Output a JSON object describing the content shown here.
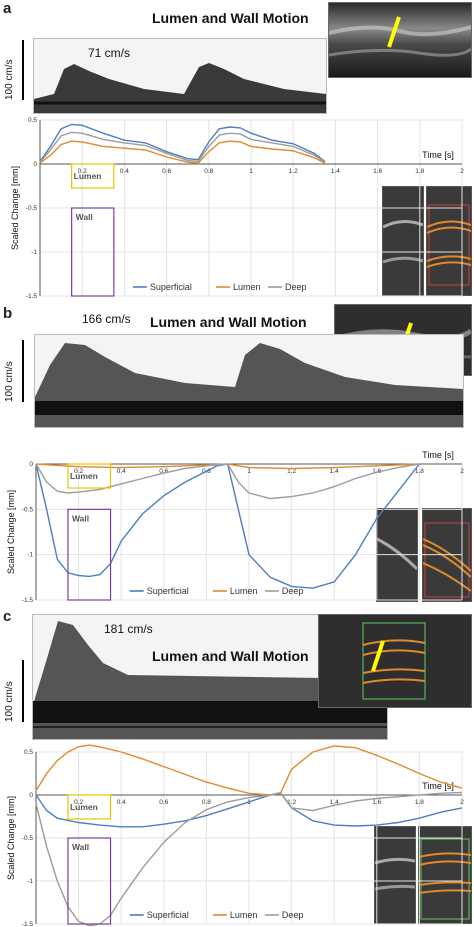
{
  "figure": {
    "panels": [
      {
        "label": "a",
        "title": "Lumen and Wall Motion",
        "velocity": "71 cm/s",
        "scale_label": "100 cm/s"
      },
      {
        "label": "b",
        "title": "Lumen and Wall Motion",
        "velocity": "166 cm/s",
        "scale_label": "100 cm/s"
      },
      {
        "label": "c",
        "title": "Lumen and Wall Motion",
        "velocity": "181 cm/s",
        "scale_label": "100 cm/s"
      }
    ]
  },
  "chart_data": [
    {
      "type": "line",
      "panel": "a",
      "ylabel": "Scaled Change [mm]",
      "xlabel": "Time [s]",
      "xlim": [
        0,
        2
      ],
      "ylim": [
        -1.5,
        0.5
      ],
      "xticks": [
        0.2,
        0.4,
        0.6,
        0.8,
        1,
        1.2,
        1.4,
        1.6,
        1.8,
        2
      ],
      "xtick_labels": [
        "0.2",
        "0.4",
        "0.6",
        "0.8",
        "1",
        "1.2",
        "1.4",
        "1.6",
        "1.8",
        "2"
      ],
      "yticks": [
        0.5,
        0,
        -0.5,
        -1,
        -1.5
      ],
      "ytick_labels": [
        "0.5",
        "0",
        "-0.5",
        "-1",
        "-1.5"
      ],
      "legend": {
        "placement": "bottom-center"
      },
      "annotations": {
        "lumen_box_label": "Lumen",
        "wall_box_label": "Wall",
        "lumen_box_x": [
          0.15,
          0.35
        ],
        "wall_box_x": [
          0.15,
          0.35
        ],
        "wall_box_top": -0.5
      },
      "series": [
        {
          "name": "Superficial",
          "color": "#4a7fc1",
          "x": [
            0,
            0.05,
            0.1,
            0.15,
            0.2,
            0.3,
            0.4,
            0.5,
            0.6,
            0.7,
            0.75,
            0.8,
            0.85,
            0.9,
            0.95,
            1.0,
            1.1,
            1.2,
            1.3,
            1.35
          ],
          "y": [
            0.03,
            0.2,
            0.4,
            0.45,
            0.44,
            0.35,
            0.27,
            0.24,
            0.14,
            0.06,
            0.05,
            0.25,
            0.4,
            0.42,
            0.41,
            0.35,
            0.27,
            0.23,
            0.12,
            0.03
          ]
        },
        {
          "name": "Lumen",
          "color": "#e08a2c",
          "x": [
            0,
            0.05,
            0.1,
            0.15,
            0.2,
            0.3,
            0.4,
            0.5,
            0.6,
            0.7,
            0.75,
            0.8,
            0.85,
            0.9,
            0.95,
            1.0,
            1.1,
            1.2,
            1.3,
            1.35
          ],
          "y": [
            0.01,
            0.1,
            0.22,
            0.26,
            0.25,
            0.2,
            0.18,
            0.16,
            0.08,
            0.02,
            0.01,
            0.14,
            0.24,
            0.26,
            0.25,
            0.2,
            0.17,
            0.15,
            0.07,
            0.01
          ]
        },
        {
          "name": "Deep",
          "color": "#9c9c9c",
          "x": [
            0,
            0.05,
            0.1,
            0.15,
            0.2,
            0.3,
            0.4,
            0.5,
            0.6,
            0.7,
            0.75,
            0.8,
            0.85,
            0.9,
            0.95,
            1.0,
            1.1,
            1.2,
            1.3,
            1.35
          ],
          "y": [
            0.02,
            0.16,
            0.32,
            0.36,
            0.35,
            0.28,
            0.24,
            0.21,
            0.12,
            0.04,
            0.03,
            0.2,
            0.33,
            0.35,
            0.34,
            0.28,
            0.24,
            0.2,
            0.1,
            0.02
          ]
        }
      ]
    },
    {
      "type": "line",
      "panel": "b",
      "ylabel": "Scaled Change [mm]",
      "xlabel": "Time [s]",
      "xlim": [
        0,
        2
      ],
      "ylim": [
        -1.5,
        0
      ],
      "xticks": [
        0.2,
        0.4,
        0.6,
        0.8,
        1,
        1.2,
        1.4,
        1.6,
        1.8,
        2
      ],
      "xtick_labels": [
        "0.2",
        "0.4",
        "0.6",
        "0.8",
        "1",
        "1.2",
        "1.4",
        "1.6",
        "1.8",
        "2"
      ],
      "yticks": [
        0,
        -0.5,
        -1,
        -1.5
      ],
      "ytick_labels": [
        "0",
        "-0.5",
        "-1",
        "-1.5"
      ],
      "legend": {
        "placement": "bottom-center"
      },
      "annotations": {
        "lumen_box_label": "Lumen",
        "wall_box_label": "Wall",
        "lumen_box_x": [
          0.15,
          0.35
        ],
        "wall_box_x": [
          0.15,
          0.35
        ],
        "wall_box_top": -0.5
      },
      "series": [
        {
          "name": "Superficial",
          "color": "#4a7fc1",
          "x": [
            0,
            0.05,
            0.1,
            0.15,
            0.2,
            0.25,
            0.3,
            0.35,
            0.4,
            0.5,
            0.6,
            0.7,
            0.8,
            0.85,
            0.9,
            0.95,
            1.0,
            1.1,
            1.2,
            1.3,
            1.4,
            1.5,
            1.6,
            1.7,
            1.8
          ],
          "y": [
            0,
            -0.5,
            -1.05,
            -1.2,
            -1.23,
            -1.24,
            -1.22,
            -1.1,
            -0.85,
            -0.55,
            -0.35,
            -0.2,
            -0.08,
            -0.02,
            0,
            -0.5,
            -1.0,
            -1.25,
            -1.35,
            -1.37,
            -1.3,
            -1.0,
            -0.6,
            -0.3,
            0
          ]
        },
        {
          "name": "Lumen",
          "color": "#e08a2c",
          "x": [
            0,
            0.2,
            0.4,
            0.6,
            0.8,
            0.9,
            1.0,
            1.2,
            1.4,
            1.6,
            1.8
          ],
          "y": [
            0,
            -0.03,
            -0.04,
            -0.03,
            -0.01,
            0,
            -0.04,
            -0.05,
            -0.04,
            -0.02,
            0
          ]
        },
        {
          "name": "Deep",
          "color": "#9c9c9c",
          "x": [
            0,
            0.05,
            0.1,
            0.15,
            0.2,
            0.3,
            0.4,
            0.5,
            0.6,
            0.7,
            0.8,
            0.9,
            0.95,
            1.0,
            1.1,
            1.2,
            1.3,
            1.4,
            1.5,
            1.6,
            1.7,
            1.8
          ],
          "y": [
            0,
            -0.2,
            -0.3,
            -0.32,
            -0.31,
            -0.28,
            -0.22,
            -0.16,
            -0.1,
            -0.05,
            -0.02,
            0,
            -0.2,
            -0.32,
            -0.38,
            -0.36,
            -0.32,
            -0.25,
            -0.16,
            -0.09,
            -0.04,
            0
          ]
        }
      ]
    },
    {
      "type": "line",
      "panel": "c",
      "ylabel": "Scaled Change [mm]",
      "xlabel": "Time [s]",
      "xlim": [
        0,
        2
      ],
      "ylim": [
        -1.5,
        0.5
      ],
      "xticks": [
        0.2,
        0.4,
        0.6,
        0.8,
        1,
        1.2,
        1.4,
        1.6,
        1.8,
        2
      ],
      "xtick_labels": [
        "0.2",
        "0.4",
        "0.6",
        "0.8",
        "1",
        "1.2",
        "1.4",
        "1.6",
        "1.8",
        "2"
      ],
      "yticks": [
        0.5,
        0,
        -0.5,
        -1,
        -1.5
      ],
      "ytick_labels": [
        "0.5",
        "0",
        "-0.5",
        "-1",
        "-1.5"
      ],
      "legend": {
        "placement": "bottom-center"
      },
      "annotations": {
        "lumen_box_label": "Lumen",
        "wall_box_label": "Wall",
        "lumen_box_x": [
          0.15,
          0.35
        ],
        "wall_box_x": [
          0.15,
          0.35
        ],
        "wall_box_top": -0.5
      },
      "series": [
        {
          "name": "Superficial",
          "color": "#4a7fc1",
          "x": [
            0,
            0.05,
            0.1,
            0.2,
            0.3,
            0.4,
            0.5,
            0.6,
            0.7,
            0.8,
            0.9,
            1.0,
            1.1,
            1.15,
            1.2,
            1.3,
            1.4,
            1.5,
            1.6,
            1.7,
            1.8,
            1.9,
            2.0
          ],
          "y": [
            0,
            -0.18,
            -0.27,
            -0.32,
            -0.35,
            -0.37,
            -0.37,
            -0.34,
            -0.3,
            -0.24,
            -0.16,
            -0.08,
            0,
            0.02,
            -0.15,
            -0.3,
            -0.35,
            -0.36,
            -0.35,
            -0.32,
            -0.27,
            -0.2,
            -0.15
          ]
        },
        {
          "name": "Lumen",
          "color": "#e08a2c",
          "x": [
            0,
            0.05,
            0.1,
            0.15,
            0.2,
            0.25,
            0.3,
            0.4,
            0.5,
            0.6,
            0.7,
            0.8,
            0.9,
            1.0,
            1.1,
            1.15,
            1.2,
            1.3,
            1.4,
            1.5,
            1.6,
            1.7,
            1.8,
            1.9,
            2.0
          ],
          "y": [
            0.05,
            0.25,
            0.4,
            0.5,
            0.56,
            0.58,
            0.56,
            0.5,
            0.42,
            0.33,
            0.24,
            0.15,
            0.08,
            0.02,
            0,
            0.03,
            0.3,
            0.5,
            0.57,
            0.55,
            0.46,
            0.36,
            0.25,
            0.15,
            0.08
          ]
        },
        {
          "name": "Deep",
          "color": "#9c9c9c",
          "x": [
            0,
            0.05,
            0.1,
            0.15,
            0.2,
            0.25,
            0.3,
            0.35,
            0.4,
            0.5,
            0.6,
            0.7,
            0.8,
            0.9,
            1.0,
            1.1,
            1.15,
            1.2,
            1.3,
            1.4,
            1.5,
            1.6,
            1.7,
            1.8,
            1.9,
            2.0
          ],
          "y": [
            -0.1,
            -0.6,
            -1.0,
            -1.3,
            -1.47,
            -1.52,
            -1.5,
            -1.4,
            -1.2,
            -0.85,
            -0.55,
            -0.32,
            -0.17,
            -0.08,
            -0.03,
            0,
            0.02,
            -0.15,
            -0.18,
            -0.12,
            -0.07,
            -0.04,
            -0.02,
            0,
            0.02,
            0.03
          ]
        }
      ]
    }
  ]
}
